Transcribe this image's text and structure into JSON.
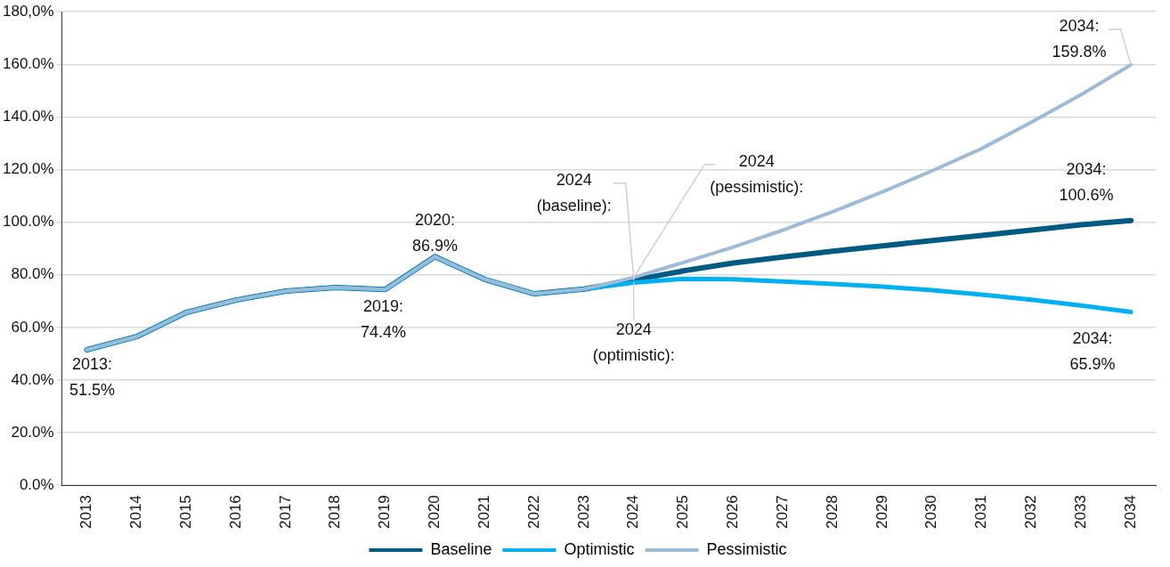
{
  "chart_data": {
    "type": "line",
    "categories": [
      "2013",
      "2014",
      "2015",
      "2016",
      "2017",
      "2018",
      "2019",
      "2020",
      "2021",
      "2022",
      "2023",
      "2024",
      "2025",
      "2026",
      "2027",
      "2028",
      "2029",
      "2030",
      "2031",
      "2032",
      "2033",
      "2034"
    ],
    "series": [
      {
        "name": "Baseline",
        "color": "#005b82",
        "values": [
          51.5,
          56.5,
          65.7,
          70.4,
          73.8,
          75.2,
          74.4,
          86.9,
          78.3,
          72.8,
          74.6,
          78,
          81.5,
          84.5,
          86.8,
          89,
          91,
          93,
          95,
          97,
          99,
          100.6
        ]
      },
      {
        "name": "Optimistic",
        "color": "#00b0f0",
        "values": [
          51.5,
          56.5,
          65.7,
          70.4,
          73.8,
          75.2,
          74.4,
          86.9,
          78.3,
          72.8,
          74.6,
          77,
          78.5,
          78.3,
          77.5,
          76.5,
          75.5,
          74.2,
          72.5,
          70.5,
          68.3,
          65.9
        ]
      },
      {
        "name": "Pessimistic",
        "color": "#9dbad6",
        "values": [
          51.5,
          56.5,
          65.7,
          70.4,
          73.8,
          75.2,
          74.4,
          86.9,
          78.3,
          72.8,
          74.6,
          79,
          84.7,
          90.5,
          97,
          104,
          111.5,
          119.5,
          128,
          138,
          148.5,
          159.8
        ]
      }
    ],
    "ylim": [
      0,
      180
    ],
    "yticks": [
      {
        "value": 0,
        "label": "0.0%"
      },
      {
        "value": 20,
        "label": "20.0%"
      },
      {
        "value": 40,
        "label": "40.0%"
      },
      {
        "value": 60,
        "label": "60.0%"
      },
      {
        "value": 80,
        "label": "80.0%"
      },
      {
        "value": 100,
        "label": "100.0%"
      },
      {
        "value": 120,
        "label": "120.0%"
      },
      {
        "value": 140,
        "label": "140.0%"
      },
      {
        "value": 160,
        "label": "160.0%"
      },
      {
        "value": 180,
        "label": "180,0%"
      }
    ],
    "grid": "y",
    "legend": "bottom",
    "marker": "none",
    "line_style": "solid",
    "annotations": [
      {
        "text": "2013:\n51.5%",
        "x": "2013",
        "y": 51.5
      },
      {
        "text": "2019:\n74.4%",
        "x": "2019",
        "y": 74.4
      },
      {
        "text": "2020:\n86.9%",
        "x": "2020",
        "y": 86.9
      },
      {
        "text": "2024\n(baseline):",
        "x": "2024",
        "y": 78
      },
      {
        "text": "2024\n(pessimistic):",
        "x": "2024",
        "y": 79
      },
      {
        "text": "2024\n(optimistic):",
        "x": "2024",
        "y": 77
      },
      {
        "text": "2034:\n159.8%",
        "x": "2034",
        "y": 159.8
      },
      {
        "text": "2034:\n100.6%",
        "x": "2034",
        "y": 100.6
      },
      {
        "text": "2034:\n65.9%",
        "x": "2034",
        "y": 65.9
      }
    ]
  }
}
